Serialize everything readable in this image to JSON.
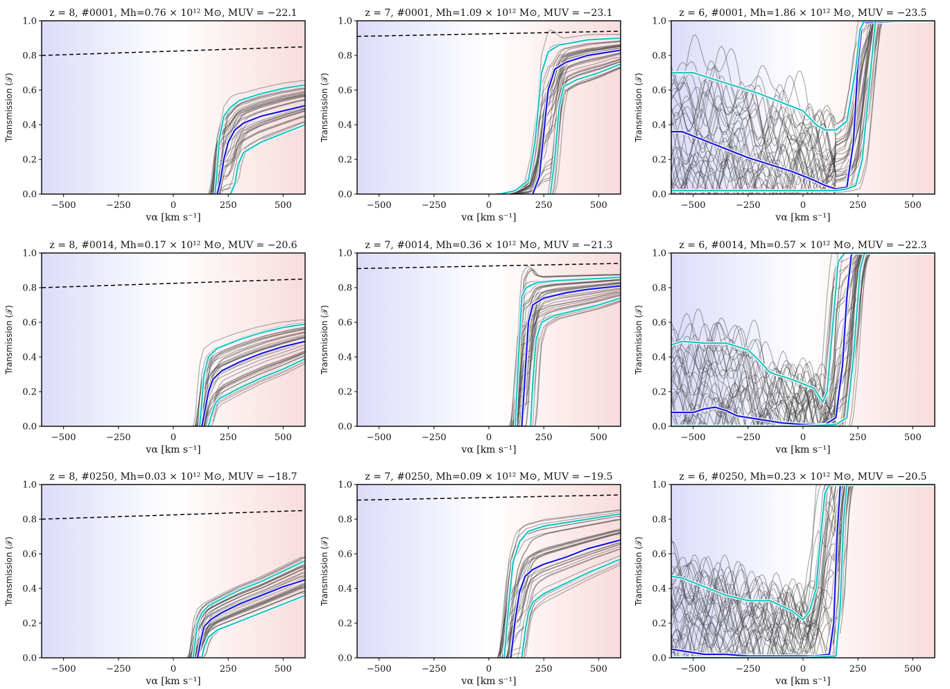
{
  "figure": {
    "colors": {
      "blue_shade": "#dcdcfa",
      "red_shade": "#f8dcdc",
      "median": "#1515e0",
      "percentile": "#1ec3c3",
      "sightline": "#3a3a3a",
      "dashed": "#000000"
    }
  },
  "chart_data": [
    {
      "type": "line",
      "title": "z = 8, #0001, Mh=0.76 × 10¹² M⊙, MUV = −22.1",
      "xlabel": "vα [km s⁻¹]",
      "ylabel": "Transmission (𝒯)",
      "xlim": [
        -600,
        600
      ],
      "ylim": [
        0,
        1
      ],
      "xticks": [
        -500,
        -250,
        0,
        250,
        500
      ],
      "yticks": [
        0.0,
        0.2,
        0.4,
        0.6,
        0.8,
        1.0
      ],
      "grid": false,
      "series": [
        {
          "kind": "dashed",
          "x": [
            -600,
            600
          ],
          "y": [
            0.8,
            0.85
          ]
        },
        {
          "kind": "median",
          "x": [
            200,
            215,
            230,
            250,
            280,
            320,
            400,
            500,
            600
          ],
          "y": [
            0,
            0.08,
            0.2,
            0.3,
            0.37,
            0.41,
            0.45,
            0.48,
            0.51
          ]
        },
        {
          "kind": "p84",
          "x": [
            190,
            200,
            210,
            230,
            260,
            300,
            400,
            500,
            600
          ],
          "y": [
            0,
            0.15,
            0.32,
            0.45,
            0.5,
            0.54,
            0.58,
            0.61,
            0.63
          ]
        },
        {
          "kind": "p16",
          "x": [
            260,
            280,
            295,
            320,
            400,
            500,
            600
          ],
          "y": [
            0,
            0.06,
            0.17,
            0.24,
            0.3,
            0.35,
            0.4
          ]
        }
      ]
    },
    {
      "type": "line",
      "title": "z = 7, #0001, Mh=1.09 × 10¹² M⊙, MUV = −23.1",
      "xlabel": "vα [km s⁻¹]",
      "ylabel": "Transmission (𝒯)",
      "xlim": [
        -600,
        600
      ],
      "ylim": [
        0,
        1
      ],
      "xticks": [
        -500,
        -250,
        0,
        250,
        500
      ],
      "yticks": [
        0.0,
        0.2,
        0.4,
        0.6,
        0.8,
        1.0
      ],
      "grid": false,
      "series": [
        {
          "kind": "dashed",
          "x": [
            -600,
            600
          ],
          "y": [
            0.91,
            0.94
          ]
        },
        {
          "kind": "median",
          "x": [
            200,
            230,
            250,
            270,
            300,
            350,
            450,
            600
          ],
          "y": [
            0,
            0.1,
            0.35,
            0.6,
            0.72,
            0.76,
            0.8,
            0.83
          ]
        },
        {
          "kind": "p84",
          "x": [
            50,
            120,
            180,
            210,
            240,
            270,
            320,
            450,
            600
          ],
          "y": [
            0,
            0.02,
            0.08,
            0.3,
            0.7,
            0.82,
            0.86,
            0.89,
            0.9
          ]
        },
        {
          "kind": "p16",
          "x": [
            280,
            300,
            320,
            340,
            400,
            500,
            600
          ],
          "y": [
            0,
            0.2,
            0.5,
            0.62,
            0.66,
            0.7,
            0.75
          ]
        }
      ]
    },
    {
      "type": "line",
      "title": "z = 6, #0001, Mh=1.86 × 10¹² M⊙, MUV = −23.5",
      "xlabel": "vα [km s⁻¹]",
      "ylabel": "Transmission (𝒯)",
      "xlim": [
        -600,
        600
      ],
      "ylim": [
        0,
        1
      ],
      "xticks": [
        -500,
        -250,
        0,
        250,
        500
      ],
      "yticks": [
        0.0,
        0.2,
        0.4,
        0.6,
        0.8,
        1.0
      ],
      "grid": false,
      "series": [
        {
          "kind": "median",
          "x": [
            -600,
            -550,
            -450,
            -350,
            -250,
            -150,
            -50,
            50,
            100,
            150,
            200,
            230,
            250,
            270,
            600
          ],
          "y": [
            0.36,
            0.36,
            0.31,
            0.26,
            0.21,
            0.17,
            0.13,
            0.08,
            0.05,
            0.03,
            0.04,
            0.3,
            0.75,
            0.99,
            1.0
          ]
        },
        {
          "kind": "p84",
          "x": [
            -600,
            -500,
            -400,
            -300,
            -200,
            -100,
            0,
            60,
            100,
            150,
            200,
            240,
            260,
            280,
            600
          ],
          "y": [
            0.7,
            0.7,
            0.66,
            0.62,
            0.58,
            0.53,
            0.48,
            0.4,
            0.37,
            0.37,
            0.42,
            0.72,
            0.95,
            1.0,
            1.0
          ]
        },
        {
          "kind": "p16",
          "x": [
            -600,
            -400,
            -200,
            0,
            150,
            200,
            240,
            270,
            300,
            330,
            600
          ],
          "y": [
            0.02,
            0.02,
            0.02,
            0.02,
            0.02,
            0.03,
            0.05,
            0.2,
            0.6,
            1.0,
            1.0
          ]
        }
      ]
    },
    {
      "type": "line",
      "title": "z = 8, #0014, Mh=0.17 × 10¹² M⊙, MUV = −20.6",
      "xlabel": "vα [km s⁻¹]",
      "ylabel": "Transmission (𝒯)",
      "xlim": [
        -600,
        600
      ],
      "ylim": [
        0,
        1
      ],
      "xticks": [
        -500,
        -250,
        0,
        250,
        500
      ],
      "yticks": [
        0.0,
        0.2,
        0.4,
        0.6,
        0.8,
        1.0
      ],
      "grid": false,
      "series": [
        {
          "kind": "dashed",
          "x": [
            -600,
            600
          ],
          "y": [
            0.8,
            0.85
          ]
        },
        {
          "kind": "median",
          "x": [
            130,
            145,
            160,
            180,
            220,
            300,
            400,
            500,
            600
          ],
          "y": [
            0,
            0.1,
            0.2,
            0.27,
            0.32,
            0.37,
            0.42,
            0.46,
            0.49
          ]
        },
        {
          "kind": "p84",
          "x": [
            120,
            130,
            140,
            160,
            200,
            300,
            400,
            500,
            600
          ],
          "y": [
            0,
            0.15,
            0.3,
            0.4,
            0.45,
            0.5,
            0.54,
            0.57,
            0.59
          ]
        },
        {
          "kind": "p16",
          "x": [
            160,
            175,
            190,
            210,
            300,
            400,
            500,
            600
          ],
          "y": [
            0,
            0.07,
            0.13,
            0.16,
            0.22,
            0.28,
            0.33,
            0.39
          ]
        }
      ]
    },
    {
      "type": "line",
      "title": "z = 7, #0014, Mh=0.36 × 10¹² M⊙, MUV = −21.3",
      "xlabel": "vα [km s⁻¹]",
      "ylabel": "Transmission (𝒯)",
      "xlim": [
        -600,
        600
      ],
      "ylim": [
        0,
        1
      ],
      "xticks": [
        -500,
        -250,
        0,
        250,
        500
      ],
      "yticks": [
        0.0,
        0.2,
        0.4,
        0.6,
        0.8,
        1.0
      ],
      "grid": false,
      "series": [
        {
          "kind": "dashed",
          "x": [
            -600,
            600
          ],
          "y": [
            0.91,
            0.94
          ]
        },
        {
          "kind": "median",
          "x": [
            150,
            165,
            180,
            200,
            250,
            350,
            450,
            600
          ],
          "y": [
            0,
            0.3,
            0.6,
            0.7,
            0.74,
            0.77,
            0.79,
            0.81
          ]
        },
        {
          "kind": "p84",
          "x": [
            120,
            135,
            150,
            170,
            220,
            300,
            450,
            600
          ],
          "y": [
            0,
            0.4,
            0.75,
            0.8,
            0.83,
            0.84,
            0.85,
            0.86
          ]
        },
        {
          "kind": "p16",
          "x": [
            190,
            200,
            215,
            240,
            300,
            400,
            500,
            600
          ],
          "y": [
            0,
            0.25,
            0.5,
            0.6,
            0.64,
            0.67,
            0.7,
            0.74
          ]
        }
      ]
    },
    {
      "type": "line",
      "title": "z = 6, #0014, Mh=0.57 × 10¹² M⊙, MUV = −22.3",
      "xlabel": "vα [km s⁻¹]",
      "ylabel": "Transmission (𝒯)",
      "xlim": [
        -600,
        600
      ],
      "ylim": [
        0,
        1
      ],
      "xticks": [
        -500,
        -250,
        0,
        250,
        500
      ],
      "yticks": [
        0.0,
        0.2,
        0.4,
        0.6,
        0.8,
        1.0
      ],
      "grid": false,
      "series": [
        {
          "kind": "median",
          "x": [
            -600,
            -500,
            -450,
            -400,
            -350,
            -300,
            -200,
            -100,
            0,
            100,
            150,
            180,
            200,
            220,
            240,
            600
          ],
          "y": [
            0.08,
            0.08,
            0.1,
            0.11,
            0.09,
            0.06,
            0.04,
            0.02,
            0.01,
            0.01,
            0.05,
            0.35,
            0.75,
            0.99,
            1.0,
            1.0
          ]
        },
        {
          "kind": "p84",
          "x": [
            -600,
            -550,
            -450,
            -350,
            -250,
            -200,
            -150,
            -50,
            50,
            90,
            110,
            130,
            160,
            190,
            600
          ],
          "y": [
            0.47,
            0.49,
            0.48,
            0.48,
            0.44,
            0.38,
            0.31,
            0.27,
            0.22,
            0.14,
            0.2,
            0.5,
            0.95,
            1.0,
            1.0
          ]
        },
        {
          "kind": "p16",
          "x": [
            -600,
            -300,
            0,
            150,
            200,
            230,
            260,
            280,
            600
          ],
          "y": [
            0,
            0,
            0,
            0.01,
            0.05,
            0.4,
            0.9,
            1.0,
            1.0
          ]
        }
      ]
    },
    {
      "type": "line",
      "title": "z = 8, #0250, Mh=0.03 × 10¹² M⊙, MUV = −18.7",
      "xlabel": "vα [km s⁻¹]",
      "ylabel": "Transmission (𝒯)",
      "xlim": [
        -600,
        600
      ],
      "ylim": [
        0,
        1
      ],
      "xticks": [
        -500,
        -250,
        0,
        250,
        500
      ],
      "yticks": [
        0.0,
        0.2,
        0.4,
        0.6,
        0.8,
        1.0
      ],
      "grid": false,
      "series": [
        {
          "kind": "dashed",
          "x": [
            -600,
            600
          ],
          "y": [
            0.8,
            0.85
          ]
        },
        {
          "kind": "median",
          "x": [
            110,
            125,
            140,
            170,
            220,
            300,
            400,
            500,
            600
          ],
          "y": [
            0,
            0.1,
            0.18,
            0.22,
            0.26,
            0.31,
            0.36,
            0.41,
            0.45
          ]
        },
        {
          "kind": "p84",
          "x": [
            90,
            100,
            110,
            130,
            160,
            220,
            300,
            400,
            500,
            600
          ],
          "y": [
            0,
            0.1,
            0.2,
            0.26,
            0.3,
            0.34,
            0.39,
            0.44,
            0.5,
            0.56
          ]
        },
        {
          "kind": "p16",
          "x": [
            130,
            140,
            160,
            200,
            300,
            400,
            500,
            600
          ],
          "y": [
            0,
            0.06,
            0.12,
            0.16,
            0.21,
            0.26,
            0.31,
            0.36
          ]
        }
      ]
    },
    {
      "type": "line",
      "title": "z = 7, #0250, Mh=0.09 × 10¹² M⊙, MUV = −19.5",
      "xlabel": "vα [km s⁻¹]",
      "ylabel": "Transmission (𝒯)",
      "xlim": [
        -600,
        600
      ],
      "ylim": [
        0,
        1
      ],
      "xticks": [
        -500,
        -250,
        0,
        250,
        500
      ],
      "yticks": [
        0.0,
        0.2,
        0.4,
        0.6,
        0.8,
        1.0
      ],
      "grid": false,
      "series": [
        {
          "kind": "dashed",
          "x": [
            -600,
            600
          ],
          "y": [
            0.91,
            0.94
          ]
        },
        {
          "kind": "median",
          "x": [
            100,
            120,
            140,
            165,
            200,
            250,
            350,
            450,
            600
          ],
          "y": [
            0,
            0.22,
            0.38,
            0.47,
            0.51,
            0.54,
            0.58,
            0.63,
            0.68
          ]
        },
        {
          "kind": "p84",
          "x": [
            70,
            90,
            110,
            140,
            180,
            250,
            350,
            450,
            600
          ],
          "y": [
            0,
            0.3,
            0.55,
            0.67,
            0.73,
            0.76,
            0.78,
            0.8,
            0.83
          ]
        },
        {
          "kind": "p16",
          "x": [
            150,
            165,
            180,
            200,
            250,
            350,
            450,
            600
          ],
          "y": [
            0,
            0.15,
            0.26,
            0.32,
            0.37,
            0.43,
            0.49,
            0.57
          ]
        }
      ]
    },
    {
      "type": "line",
      "title": "z = 6, #0250, Mh=0.23 × 10¹² M⊙, MUV = −20.5",
      "xlabel": "vα [km s⁻¹]",
      "ylabel": "Transmission (𝒯)",
      "xlim": [
        -600,
        600
      ],
      "ylim": [
        0,
        1
      ],
      "xticks": [
        -500,
        -250,
        0,
        250,
        500
      ],
      "yticks": [
        0.0,
        0.2,
        0.4,
        0.6,
        0.8,
        1.0
      ],
      "grid": false,
      "series": [
        {
          "kind": "median",
          "x": [
            -600,
            -550,
            -450,
            -350,
            -250,
            -150,
            -50,
            50,
            120,
            140,
            155,
            170,
            600
          ],
          "y": [
            0.05,
            0.04,
            0.02,
            0.02,
            0.01,
            0.01,
            0.01,
            0.01,
            0.02,
            0.2,
            0.7,
            1.0,
            1.0
          ]
        },
        {
          "kind": "p84",
          "x": [
            -600,
            -550,
            -450,
            -350,
            -250,
            -150,
            -50,
            0,
            30,
            60,
            80,
            100,
            120,
            600
          ],
          "y": [
            0.47,
            0.46,
            0.41,
            0.36,
            0.33,
            0.33,
            0.27,
            0.22,
            0.27,
            0.4,
            0.7,
            0.95,
            1.0,
            1.0
          ]
        },
        {
          "kind": "p16",
          "x": [
            -600,
            -300,
            0,
            150,
            170,
            185,
            200,
            600
          ],
          "y": [
            0,
            0,
            0,
            0.01,
            0.3,
            0.8,
            1.0,
            1.0
          ]
        }
      ]
    }
  ]
}
